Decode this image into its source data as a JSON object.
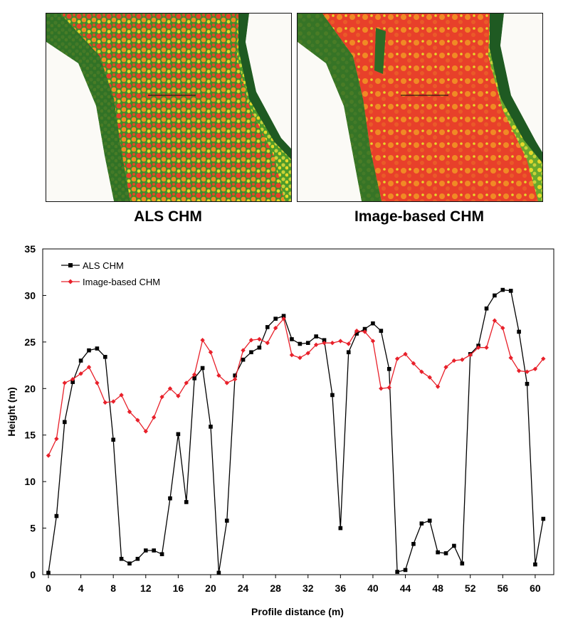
{
  "panels": [
    {
      "label": "ALS CHM"
    },
    {
      "label": "Image-based CHM"
    }
  ],
  "colors": {
    "als": "#000000",
    "image": "#e8202a",
    "map_dark_green": "#1f5a22",
    "map_green": "#4c9a2a",
    "map_yellow": "#e6d92a",
    "map_orange": "#f08a24",
    "map_red": "#e8402a",
    "map_background": "#fbfaf6"
  },
  "chart_data": {
    "type": "line",
    "xlabel": "Profile distance (m)",
    "ylabel": "Height (m)",
    "xlim": [
      0,
      61.5
    ],
    "ylim": [
      0,
      35
    ],
    "xticks": [
      0,
      4,
      8,
      12,
      16,
      20,
      24,
      28,
      32,
      36,
      40,
      44,
      48,
      52,
      56,
      60
    ],
    "yticks": [
      0,
      5,
      10,
      15,
      20,
      25,
      30,
      35
    ],
    "grid": false,
    "legend_position": "top-left",
    "series": [
      {
        "name": "ALS CHM",
        "color": "#000000",
        "marker": "square",
        "x": [
          0,
          1,
          2,
          3,
          4,
          5,
          6,
          7,
          8,
          9,
          10,
          11,
          12,
          13,
          14,
          15,
          16,
          17,
          18,
          19,
          20,
          21,
          22,
          23,
          24,
          25,
          26,
          27,
          28,
          29,
          30,
          31,
          32,
          33,
          34,
          35,
          36,
          37,
          38,
          39,
          40,
          41,
          42,
          43,
          44,
          45,
          46,
          47,
          48,
          49,
          50,
          51,
          52,
          53,
          54,
          55,
          56,
          57,
          58,
          59,
          60,
          61
        ],
        "y": [
          0.2,
          6.3,
          16.4,
          20.7,
          23.0,
          24.1,
          24.3,
          23.4,
          14.5,
          1.7,
          1.2,
          1.7,
          2.6,
          2.6,
          2.2,
          8.2,
          15.1,
          7.8,
          21.1,
          22.2,
          15.9,
          0.2,
          5.8,
          21.4,
          23.1,
          23.9,
          24.4,
          26.6,
          27.5,
          27.8,
          25.3,
          24.8,
          24.9,
          25.6,
          25.2,
          19.3,
          5.0,
          23.9,
          25.9,
          26.4,
          27.0,
          26.2,
          22.1,
          0.3,
          0.5,
          3.3,
          5.5,
          5.8,
          2.4,
          2.3,
          3.1,
          1.2,
          23.7,
          24.6,
          28.6,
          30.0,
          30.6,
          30.5,
          26.1,
          20.5,
          1.1,
          6.0
        ]
      },
      {
        "name": "Image-based CHM",
        "color": "#e8202a",
        "marker": "diamond",
        "x": [
          0,
          1,
          2,
          3,
          4,
          5,
          6,
          7,
          8,
          9,
          10,
          11,
          12,
          13,
          14,
          15,
          16,
          17,
          18,
          19,
          20,
          21,
          22,
          23,
          24,
          25,
          26,
          27,
          28,
          29,
          30,
          31,
          32,
          33,
          34,
          35,
          36,
          37,
          38,
          39,
          40,
          41,
          42,
          43,
          44,
          45,
          46,
          47,
          48,
          49,
          50,
          51,
          52,
          53,
          54,
          55,
          56,
          57,
          58,
          59,
          60,
          61
        ],
        "y": [
          12.8,
          14.6,
          20.6,
          21.0,
          21.6,
          22.3,
          20.6,
          18.5,
          18.6,
          19.3,
          17.5,
          16.6,
          15.4,
          16.9,
          19.1,
          20.0,
          19.2,
          20.6,
          21.5,
          25.2,
          23.9,
          21.4,
          20.6,
          21.0,
          24.1,
          25.2,
          25.3,
          24.9,
          26.5,
          27.5,
          23.6,
          23.3,
          23.8,
          24.7,
          24.9,
          24.9,
          25.1,
          24.8,
          26.2,
          26.1,
          25.1,
          20.0,
          20.1,
          23.2,
          23.7,
          22.7,
          21.8,
          21.2,
          20.2,
          22.3,
          23.0,
          23.1,
          23.6,
          24.4,
          24.4,
          27.3,
          26.5,
          23.3,
          21.9,
          21.8,
          22.1,
          23.2
        ]
      }
    ]
  }
}
